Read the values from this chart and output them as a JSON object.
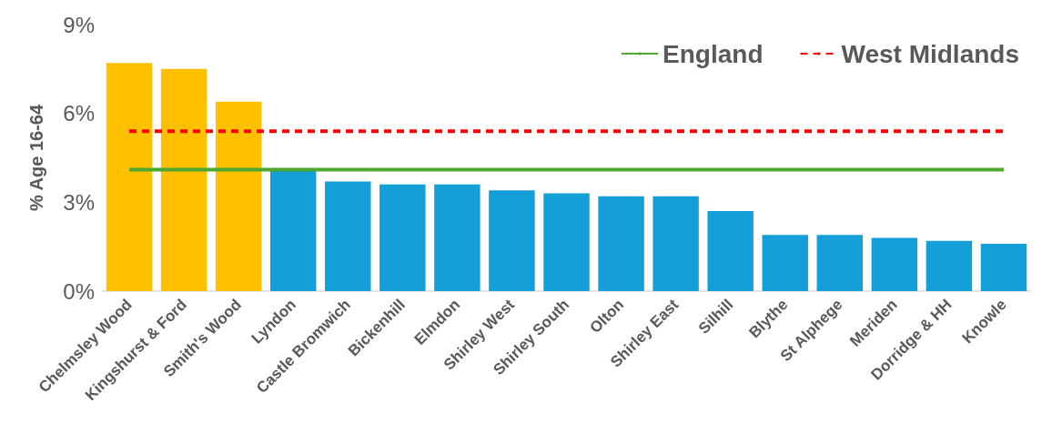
{
  "chart_data": {
    "type": "bar",
    "ylabel": "% Age 16-64",
    "categories": [
      "Chelmsley Wood",
      "Kingshurst & Ford",
      "Smith's Wood",
      "Lyndon",
      "Castle Bromwich",
      "Bickenhill",
      "Elmdon",
      "Shirley West",
      "Shirley South",
      "Olton",
      "Shirley East",
      "Silhill",
      "Blythe",
      "St Alphege",
      "Meriden",
      "Dorridge & HH",
      "Knowle"
    ],
    "series": [
      {
        "values": [
          7.7,
          7.5,
          6.4,
          4.1,
          3.7,
          3.6,
          3.6,
          3.4,
          3.3,
          3.2,
          3.2,
          2.7,
          1.9,
          1.9,
          1.8,
          1.7,
          1.6
        ],
        "colors": [
          "#ffc000",
          "#ffc000",
          "#ffc000",
          "#159fd8",
          "#159fd8",
          "#159fd8",
          "#159fd8",
          "#159fd8",
          "#159fd8",
          "#159fd8",
          "#159fd8",
          "#159fd8",
          "#159fd8",
          "#159fd8",
          "#159fd8",
          "#159fd8",
          "#159fd8"
        ]
      },
      {
        "type": "line",
        "name": "England",
        "color": "#4ea72e",
        "line_style": "solid",
        "values": [
          4.1,
          4.1,
          4.1,
          4.1,
          4.1,
          4.1,
          4.1,
          4.1,
          4.1,
          4.1,
          4.1,
          4.1,
          4.1,
          4.1,
          4.1,
          4.1,
          4.1
        ]
      },
      {
        "type": "line",
        "name": "West Midlands",
        "color": "#ff0000",
        "line_style": "dashed",
        "values": [
          5.4,
          5.4,
          5.4,
          5.4,
          5.4,
          5.4,
          5.4,
          5.4,
          5.4,
          5.4,
          5.4,
          5.4,
          5.4,
          5.4,
          5.4,
          5.4,
          5.4
        ]
      }
    ],
    "ylim": [
      0,
      9
    ],
    "yticks": [
      {
        "value": 0,
        "label": "0%"
      },
      {
        "value": 3,
        "label": "3%"
      },
      {
        "value": 6,
        "label": "6%"
      },
      {
        "value": 9,
        "label": "9%"
      }
    ],
    "grid": false,
    "legend": "top right",
    "marker": "none"
  }
}
